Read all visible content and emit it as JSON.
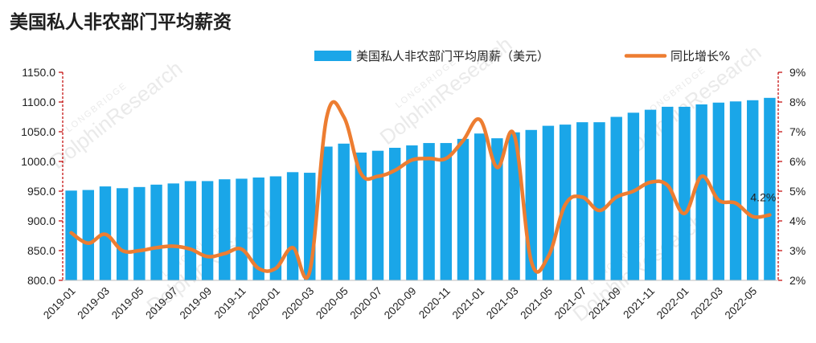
{
  "chart_data": {
    "type": "bar",
    "title": "美国私人非农部门平均薪资",
    "categories": [
      "2019-01",
      "2019-02",
      "2019-03",
      "2019-04",
      "2019-05",
      "2019-06",
      "2019-07",
      "2019-08",
      "2019-09",
      "2019-10",
      "2019-11",
      "2019-12",
      "2020-01",
      "2020-02",
      "2020-03",
      "2020-04",
      "2020-05",
      "2020-06",
      "2020-07",
      "2020-08",
      "2020-09",
      "2020-10",
      "2020-11",
      "2020-12",
      "2021-01",
      "2021-02",
      "2021-03",
      "2021-04",
      "2021-05",
      "2021-06",
      "2021-07",
      "2021-08",
      "2021-09",
      "2021-10",
      "2021-11",
      "2021-12",
      "2022-01",
      "2022-02",
      "2022-03",
      "2022-04",
      "2022-05",
      "2022-06"
    ],
    "x_tick_labels": [
      "2019-01",
      "2019-03",
      "2019-05",
      "2019-07",
      "2019-09",
      "2019-11",
      "2020-01",
      "2020-03",
      "2020-05",
      "2020-07",
      "2020-09",
      "2020-11",
      "2021-01",
      "2021-03",
      "2021-05",
      "2021-07",
      "2021-09",
      "2021-11",
      "2022-01",
      "2022-03",
      "2022-05"
    ],
    "series": [
      {
        "name": "美国私人非农部门平均周薪（美元）",
        "kind": "bar",
        "axis": "left",
        "color": "#1aa6e8",
        "values": [
          951,
          952,
          958,
          955,
          957,
          961,
          963,
          967,
          967,
          970,
          971,
          973,
          975,
          982,
          981,
          1025,
          1030,
          1015,
          1018,
          1023,
          1027,
          1031,
          1031,
          1038,
          1047,
          1039,
          1049,
          1053,
          1060,
          1062,
          1066,
          1066,
          1075,
          1082,
          1087,
          1092,
          1092,
          1096,
          1099,
          1101,
          1103,
          1107
        ]
      },
      {
        "name": "同比增长%",
        "kind": "line",
        "axis": "right",
        "color": "#ed7d31",
        "values": [
          3.6,
          3.25,
          3.55,
          3.0,
          3.0,
          3.1,
          3.15,
          3.05,
          2.8,
          2.9,
          3.05,
          2.4,
          2.4,
          3.1,
          2.3,
          7.5,
          7.5,
          5.6,
          5.5,
          5.7,
          6.05,
          6.1,
          6.1,
          6.7,
          7.4,
          5.8,
          6.9,
          2.65,
          2.8,
          4.55,
          4.8,
          4.35,
          4.8,
          5.0,
          5.3,
          5.2,
          4.25,
          5.5,
          4.7,
          4.6,
          4.15,
          4.2
        ]
      }
    ],
    "y_left": {
      "min": 800,
      "max": 1150,
      "step": 50,
      "tick_labels": [
        "800.0",
        "850.0",
        "900.0",
        "950.0",
        "1000.0",
        "1050.0",
        "1100.0",
        "1150.0"
      ]
    },
    "y_right": {
      "min": 2,
      "max": 9,
      "step": 1,
      "tick_labels": [
        "2%",
        "3%",
        "4%",
        "5%",
        "6%",
        "7%",
        "8%",
        "9%"
      ]
    },
    "annotation": {
      "text": "4.2%",
      "series_index": 1,
      "point_index": 41
    },
    "grid": "none",
    "legend_placement": "top",
    "watermark": {
      "main": "DolphinResearch",
      "small": "LONGBRIDGE"
    },
    "axis_color_right": "#c00000",
    "axis_color_left": "#c00000"
  }
}
